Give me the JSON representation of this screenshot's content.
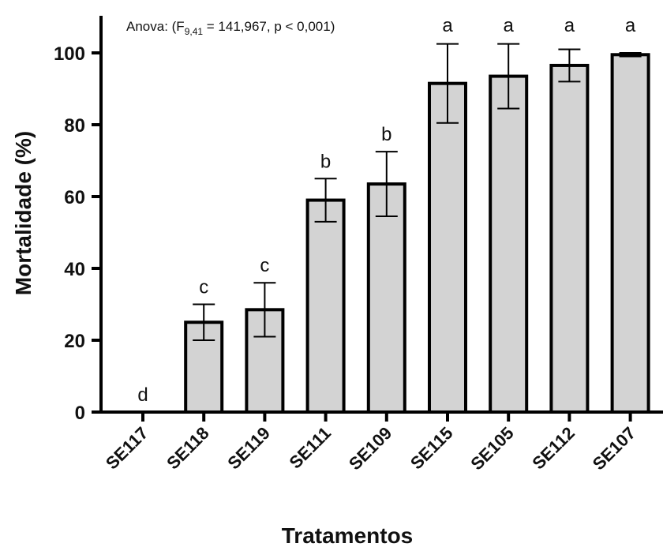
{
  "chart_data": {
    "type": "bar",
    "categories": [
      "SE117",
      "SE118",
      "SE119",
      "SE111",
      "SE109",
      "SE115",
      "SE105",
      "SE112",
      "SE107"
    ],
    "values": [
      0,
      25,
      28.5,
      59,
      63.5,
      91.5,
      93.5,
      96.5,
      99.5
    ],
    "error": [
      0,
      5,
      7.5,
      6,
      9,
      11,
      9,
      4.5,
      0.5
    ],
    "significance_letters": [
      "d",
      "c",
      "c",
      "b",
      "b",
      "a",
      "a",
      "a",
      "a"
    ],
    "annotation": {
      "prefix": "Anova: (F",
      "subscript": "9,41",
      "suffix": " = 141,967, p < 0,001)"
    },
    "xlabel": "Tratamentos",
    "ylabel": "Mortalidade (%)",
    "ylim": [
      0,
      110
    ],
    "yticks": [
      0,
      20,
      40,
      60,
      80,
      100
    ],
    "bar_color": "#d3d3d3",
    "edge_color": "#000000",
    "grid": false
  }
}
